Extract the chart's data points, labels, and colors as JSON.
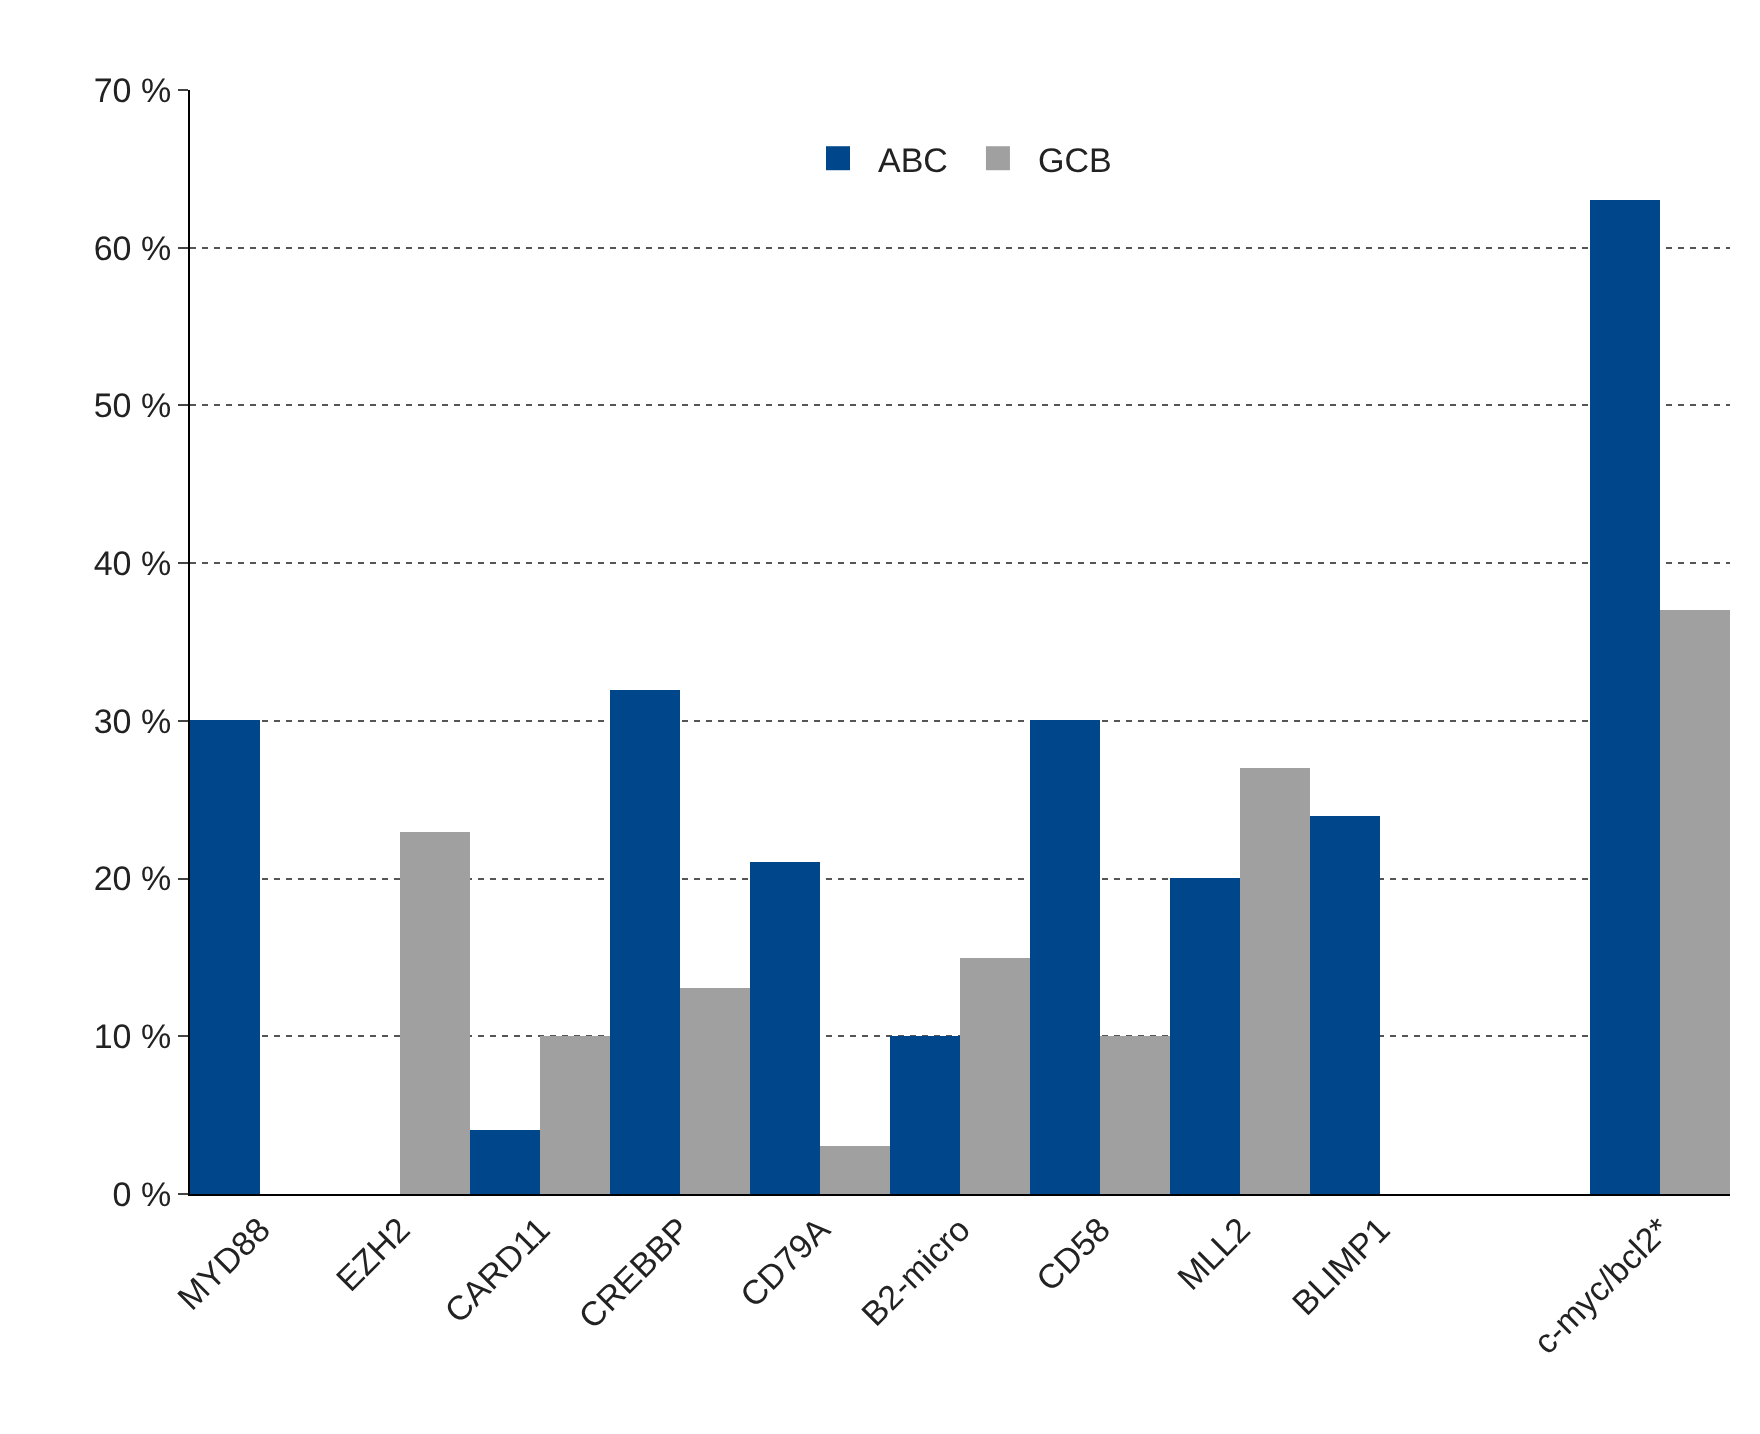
{
  "chart_data": {
    "type": "bar",
    "categories": [
      "MYD88",
      "EZH2",
      "CARD11",
      "CREBBP",
      "CD79A",
      "B2-micro",
      "CD58",
      "MLL2",
      "BLIMP1",
      null,
      "c-myc/bcl2*"
    ],
    "series": [
      {
        "name": "ABC",
        "color": "#00468b",
        "values": [
          30,
          null,
          4,
          32,
          21,
          10,
          30,
          20,
          24,
          null,
          63
        ]
      },
      {
        "name": "GCB",
        "color": "#a0a0a0",
        "values": [
          null,
          23,
          10,
          13,
          3,
          15,
          10,
          27,
          null,
          null,
          37
        ]
      }
    ],
    "ylim": [
      0,
      70
    ],
    "yticks": [
      {
        "value": 0,
        "label": "0 %"
      },
      {
        "value": 10,
        "label": "10 %"
      },
      {
        "value": 20,
        "label": "20 %"
      },
      {
        "value": 30,
        "label": "30 %"
      },
      {
        "value": 40,
        "label": "40 %"
      },
      {
        "value": 50,
        "label": "50 %"
      },
      {
        "value": 60,
        "label": "60 %"
      },
      {
        "value": 70,
        "label": "70 %"
      }
    ],
    "grid": "y",
    "legend": "top"
  }
}
